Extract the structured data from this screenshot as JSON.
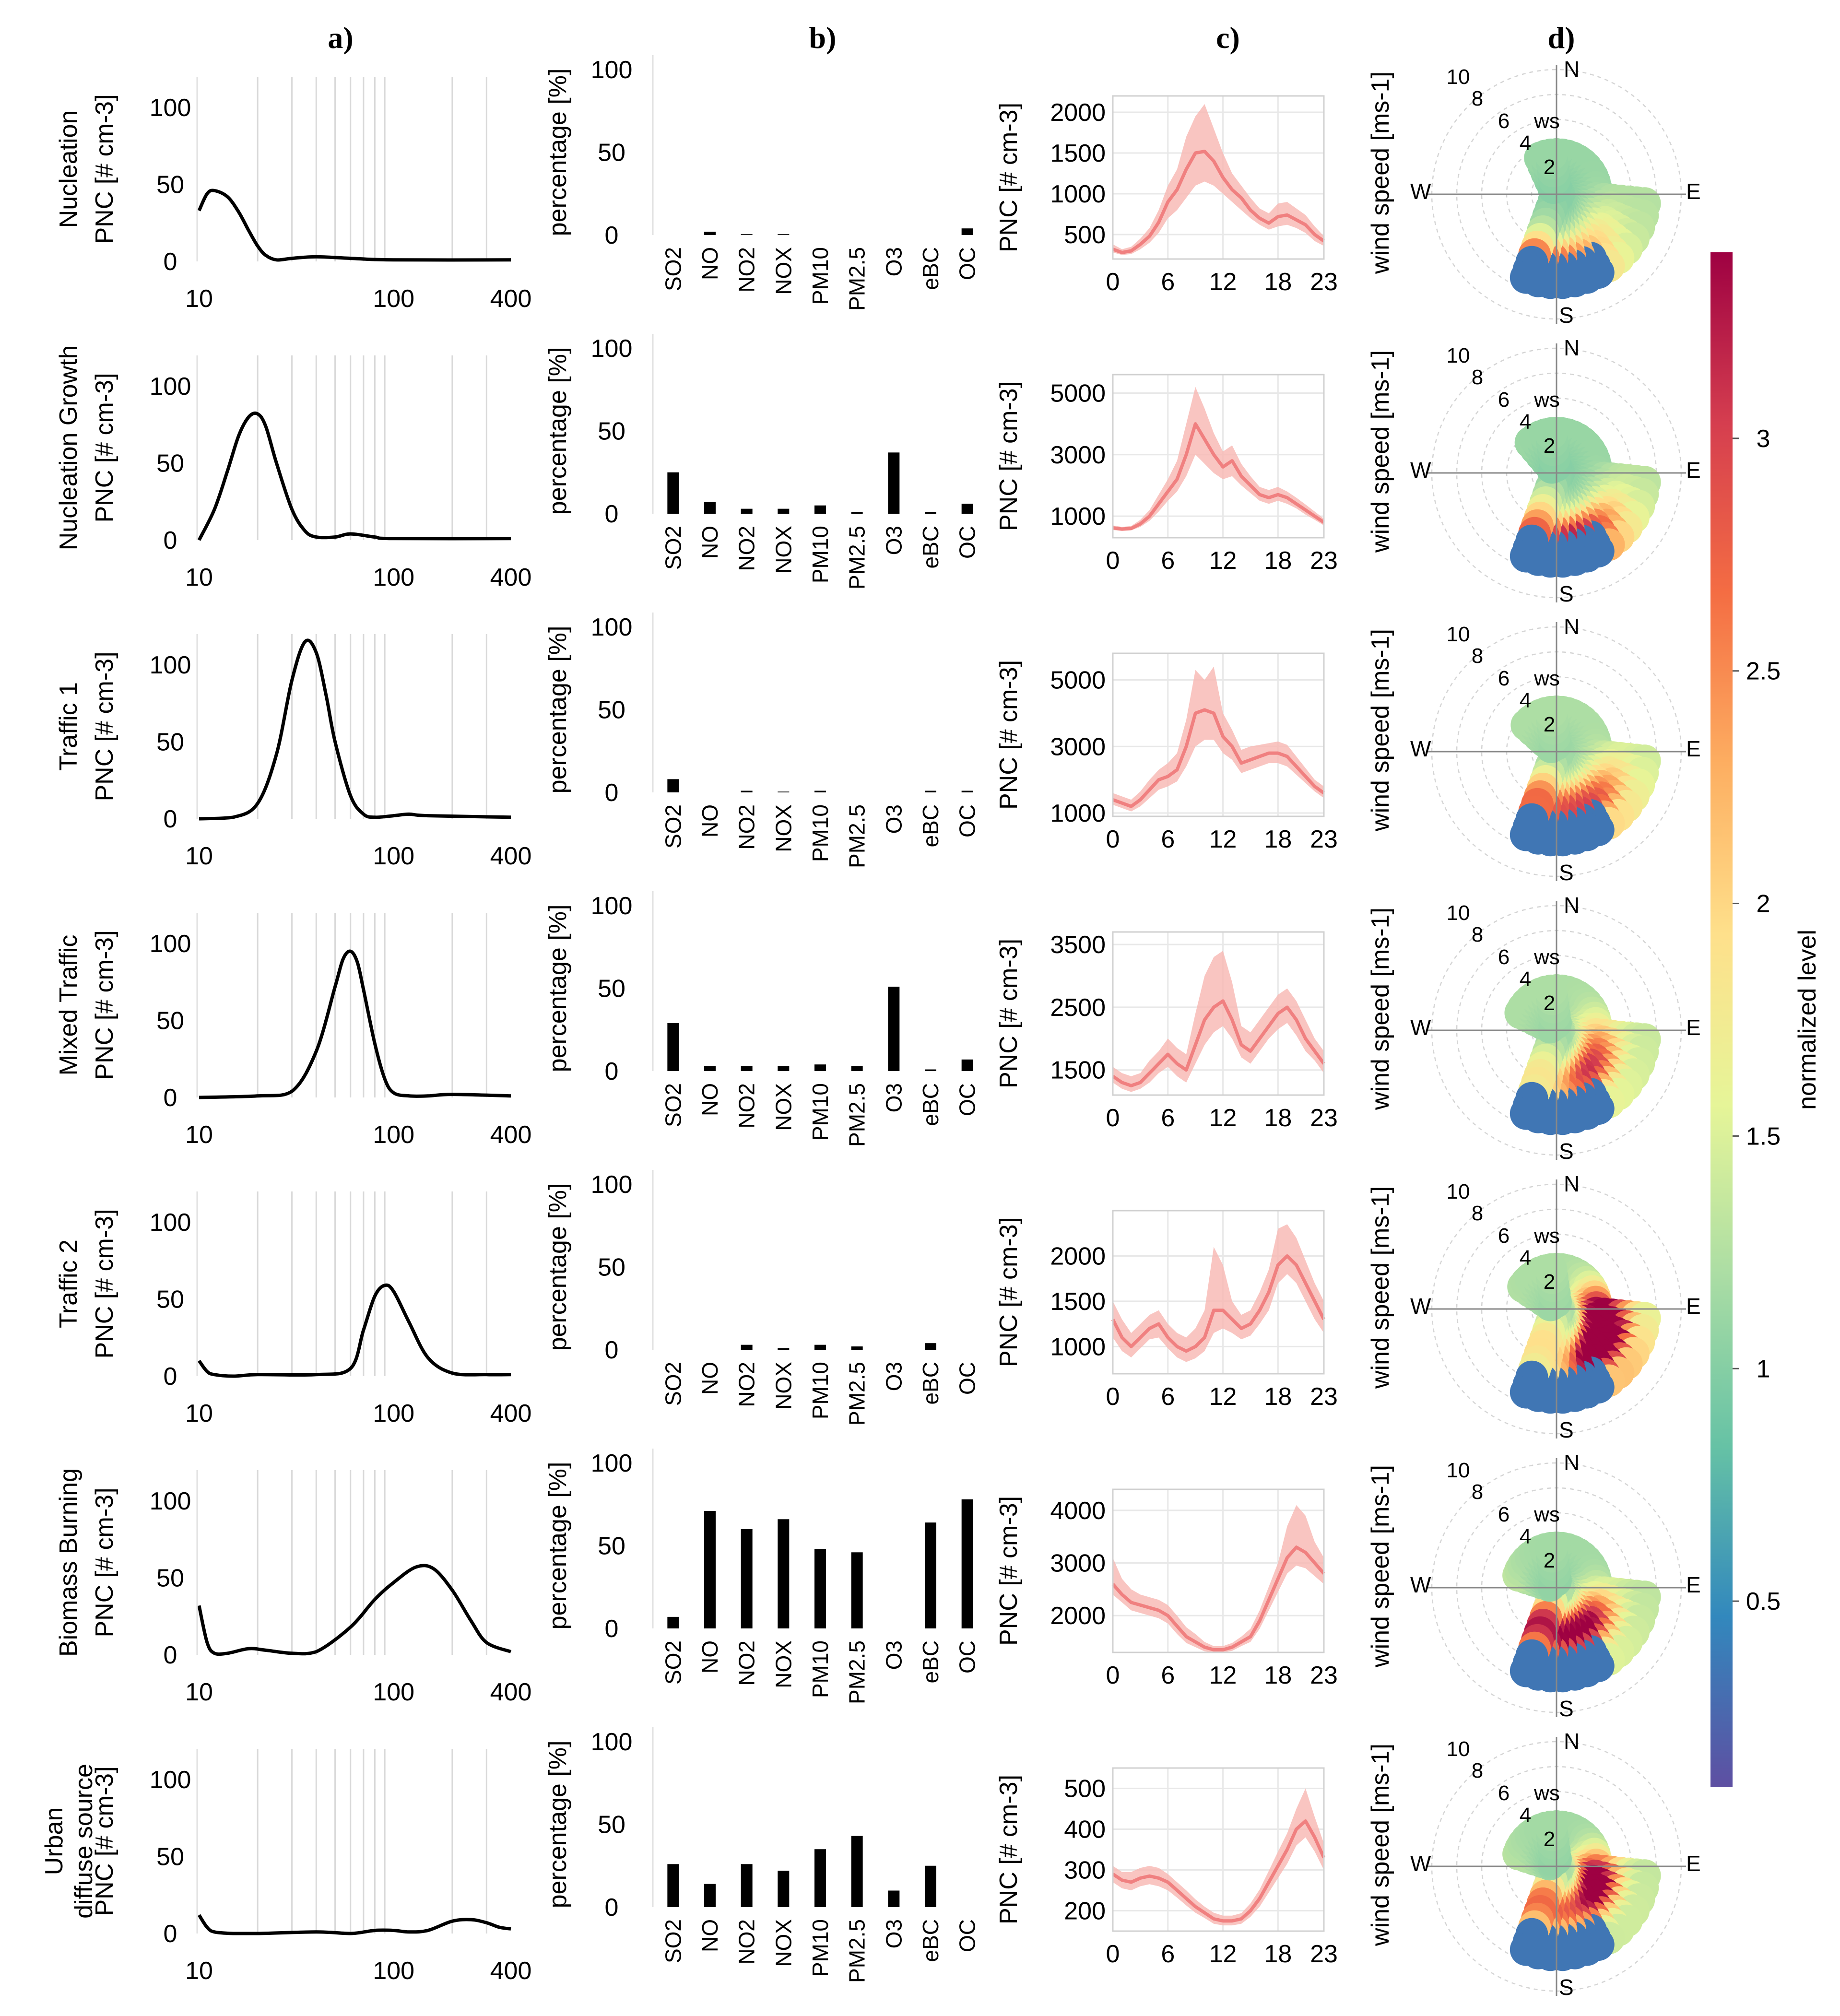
{
  "panel_labels": [
    "a)",
    "b)",
    "c)",
    "d)"
  ],
  "colorbar": {
    "label": "normalized level",
    "ticks": [
      0.5,
      1,
      1.5,
      2,
      2.5,
      3
    ],
    "tick_labels": [
      "0.5",
      "1",
      "1.5",
      "2",
      "2.5",
      "3"
    ],
    "range": [
      0.1,
      3.4
    ],
    "colors": [
      "#5e4fa2",
      "#3288bd",
      "#66c2a5",
      "#abdda4",
      "#e6f598",
      "#fee08b",
      "#fdae61",
      "#f46d43",
      "#d53e4f",
      "#9e0142"
    ]
  },
  "wind_rose_labels": {
    "N": "N",
    "E": "E",
    "S": "S",
    "W": "W",
    "rings": [
      "2",
      "4",
      "6",
      "8",
      "10"
    ],
    "ws": "ws",
    "ylabel": "wind speed [ms-1]"
  },
  "chart_data": [
    {
      "type": "line",
      "panel": "a",
      "title": "a)",
      "ylabel": "PNC [# cm-3]",
      "xscale": "log",
      "xlim": [
        10,
        400
      ],
      "ylim": [
        0,
        120
      ],
      "xticks": [
        "10",
        "100",
        "400"
      ],
      "yticks": [
        "0",
        "50",
        "100"
      ],
      "grid_x": [
        20,
        30,
        40,
        50,
        60,
        70,
        80,
        90,
        200,
        300
      ],
      "line_color": "#000000",
      "factors": [
        {
          "name": "Nucleation",
          "x": [
            10,
            11,
            12,
            14,
            16,
            18,
            20,
            22,
            25,
            30,
            40,
            60,
            100,
            400
          ],
          "y": [
            33,
            44,
            46,
            42,
            32,
            20,
            10,
            4,
            1,
            2,
            3,
            2,
            1,
            1
          ]
        },
        {
          "name": "Nucleation Growth",
          "x": [
            10,
            12,
            14,
            16,
            18,
            20,
            22,
            25,
            30,
            35,
            40,
            50,
            60,
            80,
            100,
            400
          ],
          "y": [
            0,
            20,
            45,
            68,
            80,
            82,
            74,
            50,
            20,
            6,
            2,
            2,
            4,
            2,
            1,
            1
          ]
        },
        {
          "name": "Traffic 1",
          "x": [
            10,
            15,
            20,
            25,
            30,
            35,
            40,
            45,
            50,
            60,
            70,
            80,
            100,
            120,
            150,
            400
          ],
          "y": [
            0,
            1,
            10,
            42,
            90,
            115,
            108,
            80,
            50,
            15,
            3,
            1,
            2,
            3,
            2,
            1
          ]
        },
        {
          "name": "Mixed Traffic",
          "x": [
            10,
            20,
            30,
            40,
            50,
            55,
            60,
            65,
            70,
            80,
            90,
            100,
            120,
            150,
            200,
            400
          ],
          "y": [
            0,
            1,
            4,
            30,
            72,
            90,
            95,
            88,
            70,
            35,
            12,
            3,
            1,
            1,
            2,
            1
          ]
        },
        {
          "name": "Traffic 2",
          "x": [
            10,
            11,
            12,
            15,
            20,
            40,
            60,
            70,
            80,
            90,
            100,
            120,
            150,
            200,
            300,
            400
          ],
          "y": [
            10,
            3,
            1,
            0,
            1,
            1,
            5,
            30,
            52,
            59,
            55,
            35,
            12,
            2,
            1,
            1
          ]
        },
        {
          "name": "Biomass Burning",
          "x": [
            10,
            11,
            12,
            14,
            18,
            22,
            30,
            40,
            60,
            80,
            100,
            130,
            160,
            200,
            250,
            300,
            400
          ],
          "y": [
            32,
            8,
            1,
            1,
            4,
            3,
            1,
            2,
            18,
            36,
            47,
            57,
            56,
            42,
            22,
            8,
            2
          ]
        },
        {
          "name": "Urban\ndiffuse source",
          "x": [
            10,
            11,
            12,
            15,
            20,
            40,
            60,
            80,
            100,
            120,
            150,
            200,
            250,
            300,
            350,
            400
          ],
          "y": [
            12,
            4,
            1,
            0,
            0,
            1,
            0,
            2,
            2,
            1,
            2,
            8,
            9,
            7,
            4,
            3
          ]
        }
      ]
    },
    {
      "type": "bar",
      "panel": "b",
      "title": "b)",
      "ylabel": "percentage [%]",
      "ylim": [
        0,
        100
      ],
      "yticks": [
        "0",
        "50",
        "100"
      ],
      "categories": [
        "SO2",
        "NO",
        "NO2",
        "NOX",
        "PM10",
        "PM2.5",
        "O3",
        "eBC",
        "OC"
      ],
      "series": [
        {
          "values": [
            0,
            2,
            0.5,
            0.5,
            0,
            0,
            0,
            0,
            4
          ]
        },
        {
          "values": [
            25,
            7,
            3,
            3,
            5,
            1,
            37,
            1,
            6
          ]
        },
        {
          "values": [
            8,
            0,
            1,
            0.5,
            1,
            0,
            0,
            1,
            1
          ]
        },
        {
          "values": [
            29,
            3,
            3,
            3,
            4,
            3,
            51,
            1,
            7
          ]
        },
        {
          "values": [
            0,
            0,
            3,
            1,
            3,
            2,
            0,
            4,
            0
          ]
        },
        {
          "values": [
            7,
            71,
            60,
            66,
            48,
            46,
            0,
            64,
            78
          ]
        },
        {
          "values": [
            26,
            14,
            26,
            22,
            35,
            43,
            10,
            25,
            0
          ]
        }
      ]
    },
    {
      "type": "area",
      "panel": "c",
      "title": "c)",
      "ylabel": "PNC [# cm-3]",
      "xlim": [
        0,
        23
      ],
      "xticks": [
        "0",
        "6",
        "12",
        "18",
        "23"
      ],
      "hours": [
        0,
        1,
        2,
        3,
        4,
        5,
        6,
        7,
        8,
        9,
        10,
        11,
        12,
        13,
        14,
        15,
        16,
        17,
        18,
        19,
        20,
        21,
        22,
        23
      ],
      "line_color": "#f08080",
      "band_color": "#f7b6b2",
      "series": [
        {
          "ylim": [
            200,
            2200
          ],
          "yticks": [
            "500",
            "1000",
            "1500",
            "2000"
          ],
          "values": [
            320,
            280,
            300,
            380,
            480,
            650,
            900,
            1050,
            1300,
            1500,
            1520,
            1400,
            1200,
            1050,
            950,
            800,
            700,
            640,
            720,
            740,
            680,
            620,
            500,
            420
          ],
          "lower": [
            280,
            250,
            260,
            320,
            400,
            520,
            700,
            800,
            950,
            1100,
            1150,
            1100,
            1000,
            900,
            800,
            700,
            620,
            560,
            600,
            620,
            580,
            520,
            420,
            360
          ],
          "upper": [
            380,
            320,
            350,
            450,
            580,
            800,
            1100,
            1300,
            1700,
            1950,
            2100,
            1800,
            1500,
            1250,
            1100,
            950,
            820,
            760,
            880,
            900,
            820,
            740,
            600,
            480
          ]
        },
        {
          "ylim": [
            300,
            5600
          ],
          "yticks": [
            "1000",
            "3000",
            "5000"
          ],
          "values": [
            620,
            580,
            600,
            750,
            1000,
            1400,
            1800,
            2200,
            3000,
            4000,
            3500,
            3000,
            2600,
            2800,
            2300,
            2000,
            1700,
            1600,
            1700,
            1600,
            1400,
            1200,
            1000,
            800
          ],
          "lower": [
            550,
            520,
            540,
            650,
            850,
            1150,
            1500,
            1800,
            2300,
            3000,
            2700,
            2400,
            2200,
            2300,
            2000,
            1750,
            1500,
            1400,
            1500,
            1400,
            1250,
            1050,
            880,
            700
          ],
          "upper": [
            700,
            650,
            680,
            880,
            1200,
            1700,
            2200,
            2800,
            4000,
            5200,
            4500,
            3700,
            3100,
            3300,
            2700,
            2300,
            1950,
            1850,
            1950,
            1800,
            1600,
            1380,
            1150,
            920
          ]
        },
        {
          "ylim": [
            900,
            5800
          ],
          "yticks": [
            "1000",
            "3000",
            "5000"
          ],
          "values": [
            1400,
            1300,
            1200,
            1400,
            1700,
            2000,
            2100,
            2300,
            3000,
            4000,
            4100,
            4000,
            3300,
            3000,
            2500,
            2600,
            2700,
            2800,
            2800,
            2700,
            2400,
            2100,
            1800,
            1600
          ],
          "lower": [
            1250,
            1150,
            1050,
            1200,
            1450,
            1700,
            1800,
            1950,
            2400,
            3000,
            3200,
            3200,
            2800,
            2600,
            2200,
            2300,
            2400,
            2500,
            2500,
            2400,
            2150,
            1900,
            1650,
            1450
          ],
          "upper": [
            1600,
            1500,
            1400,
            1650,
            2000,
            2300,
            2500,
            2800,
            3800,
            5300,
            5000,
            5400,
            4000,
            3500,
            2900,
            3000,
            3050,
            3100,
            3150,
            3050,
            2700,
            2350,
            2000,
            1800
          ]
        },
        {
          "ylim": [
            1100,
            3700
          ],
          "yticks": [
            "1500",
            "2500",
            "3500"
          ],
          "values": [
            1400,
            1300,
            1250,
            1300,
            1450,
            1600,
            1750,
            1600,
            1500,
            1900,
            2300,
            2500,
            2600,
            2300,
            1900,
            1800,
            2000,
            2200,
            2400,
            2500,
            2300,
            2000,
            1800,
            1600
          ],
          "lower": [
            1300,
            1200,
            1150,
            1200,
            1300,
            1450,
            1550,
            1400,
            1300,
            1600,
            1900,
            2100,
            2200,
            2000,
            1700,
            1600,
            1800,
            2000,
            2150,
            2250,
            2050,
            1800,
            1650,
            1450
          ],
          "upper": [
            1550,
            1450,
            1400,
            1450,
            1650,
            1800,
            2000,
            1850,
            1750,
            2400,
            3000,
            3300,
            3400,
            2900,
            2200,
            2100,
            2300,
            2500,
            2700,
            2800,
            2600,
            2300,
            2000,
            1800
          ]
        },
        {
          "ylim": [
            700,
            2500
          ],
          "yticks": [
            "1000",
            "1500",
            "2000"
          ],
          "values": [
            1300,
            1100,
            1000,
            1100,
            1200,
            1250,
            1100,
            1000,
            950,
            1000,
            1100,
            1400,
            1400,
            1300,
            1200,
            1250,
            1400,
            1600,
            1900,
            2000,
            1900,
            1700,
            1500,
            1300
          ],
          "lower": [
            1100,
            950,
            880,
            980,
            1080,
            1100,
            980,
            880,
            830,
            870,
            950,
            1150,
            1200,
            1150,
            1080,
            1120,
            1250,
            1400,
            1700,
            1800,
            1700,
            1500,
            1300,
            1150
          ],
          "upper": [
            1500,
            1300,
            1150,
            1250,
            1350,
            1400,
            1250,
            1150,
            1100,
            1200,
            1400,
            2100,
            1900,
            1500,
            1350,
            1400,
            1600,
            1850,
            2300,
            2350,
            2200,
            1950,
            1700,
            1500
          ]
        },
        {
          "ylim": [
            1300,
            4400
          ],
          "yticks": [
            "2000",
            "3000",
            "4000"
          ],
          "values": [
            2600,
            2400,
            2250,
            2200,
            2150,
            2100,
            2000,
            1800,
            1600,
            1500,
            1400,
            1350,
            1350,
            1400,
            1500,
            1600,
            1900,
            2300,
            2700,
            3100,
            3300,
            3200,
            3000,
            2800
          ],
          "lower": [
            2400,
            2250,
            2100,
            2050,
            2000,
            1950,
            1850,
            1650,
            1480,
            1400,
            1320,
            1300,
            1300,
            1330,
            1420,
            1500,
            1750,
            2100,
            2450,
            2800,
            2950,
            2900,
            2750,
            2600
          ],
          "upper": [
            3100,
            2700,
            2500,
            2400,
            2350,
            2300,
            2200,
            2000,
            1780,
            1650,
            1500,
            1420,
            1420,
            1480,
            1600,
            1750,
            2100,
            2550,
            3000,
            3700,
            4100,
            3900,
            3400,
            3100
          ]
        },
        {
          "ylim": [
            150,
            550
          ],
          "yticks": [
            "200",
            "300",
            "400",
            "500"
          ],
          "values": [
            290,
            275,
            270,
            280,
            285,
            280,
            270,
            250,
            230,
            210,
            195,
            180,
            175,
            175,
            180,
            200,
            230,
            270,
            310,
            350,
            400,
            420,
            380,
            330
          ],
          "lower": [
            270,
            255,
            250,
            260,
            265,
            260,
            250,
            232,
            213,
            195,
            182,
            168,
            164,
            164,
            168,
            185,
            210,
            245,
            280,
            315,
            360,
            380,
            345,
            300
          ],
          "upper": [
            310,
            295,
            295,
            305,
            310,
            305,
            290,
            270,
            250,
            228,
            210,
            195,
            188,
            188,
            194,
            218,
            252,
            298,
            345,
            390,
            450,
            500,
            430,
            365
          ]
        }
      ]
    }
  ]
}
